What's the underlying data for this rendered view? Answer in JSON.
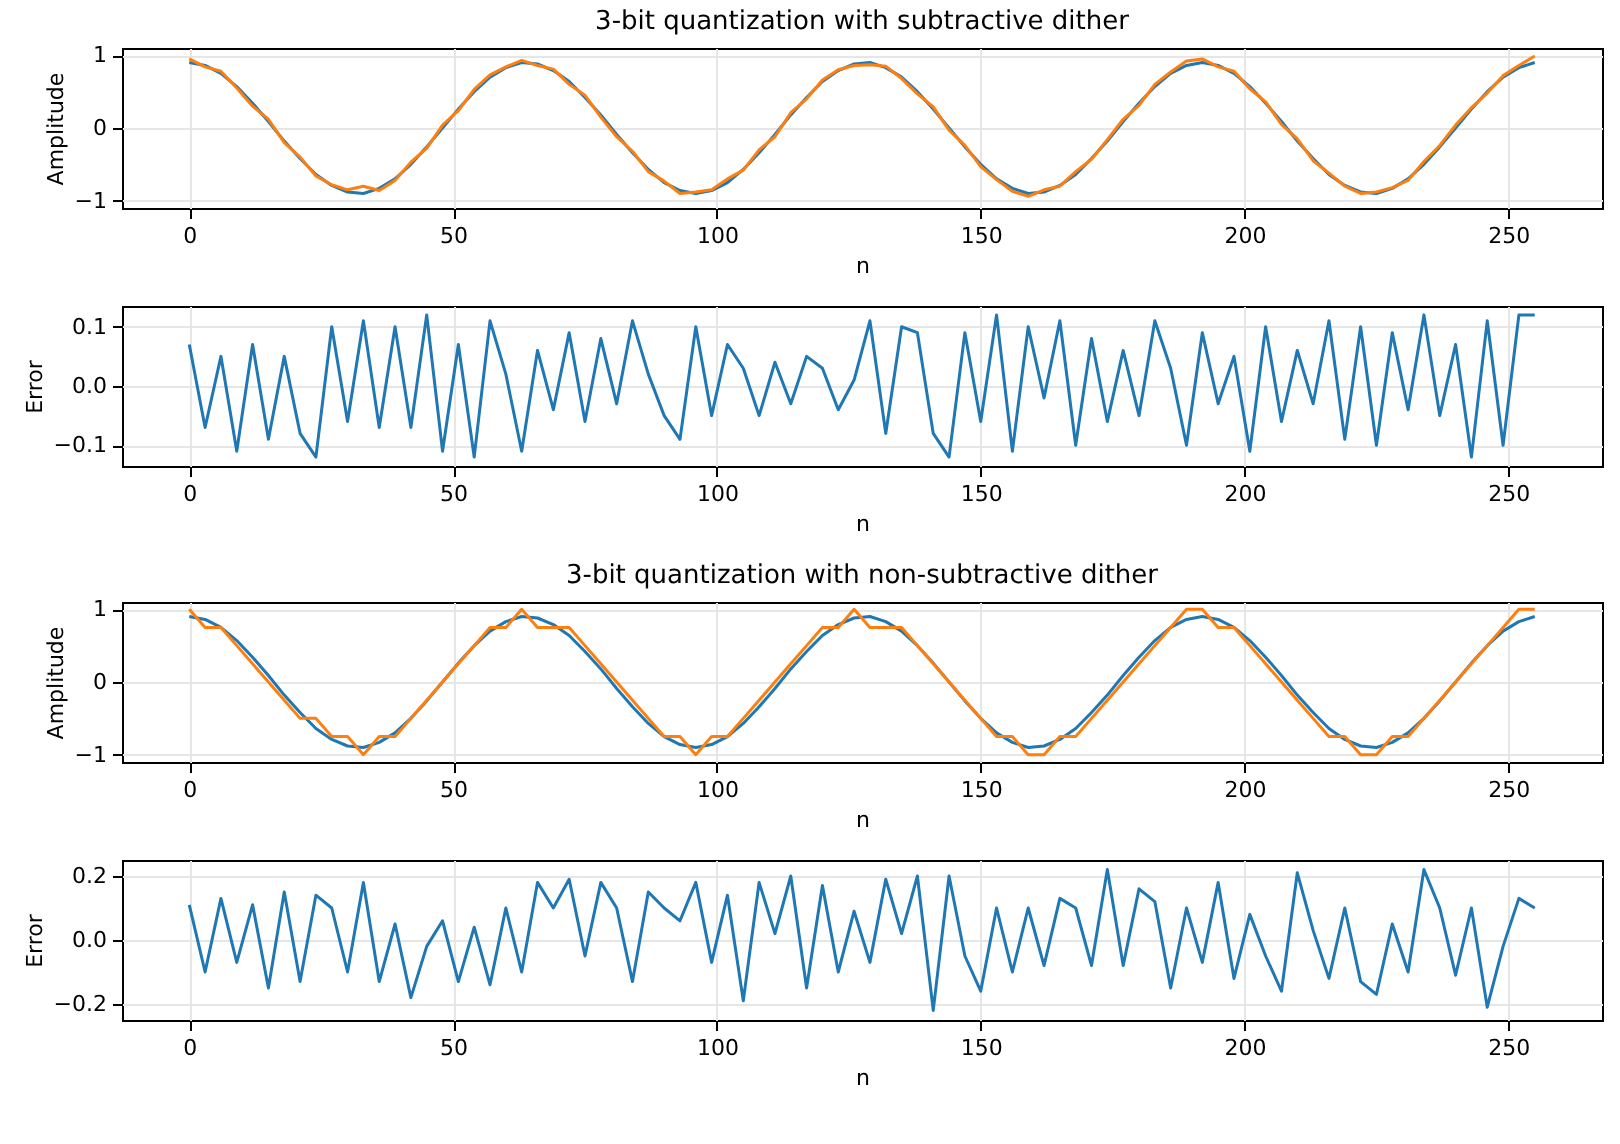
{
  "chart_data": [
    {
      "type": "line",
      "title": "3-bit quantization with subtractive dither",
      "xlabel": "n",
      "ylabel": "Amplitude",
      "xlim": [
        -12.75,
        267.75
      ],
      "xticks": [
        0,
        50,
        100,
        150,
        200,
        250
      ],
      "ylim": [
        -1.1,
        1.1
      ],
      "yticks": [
        -1,
        0,
        1
      ],
      "grid": true,
      "x": [
        0,
        3,
        6,
        9,
        12,
        15,
        18,
        21,
        24,
        27,
        30,
        33,
        36,
        39,
        42,
        45,
        48,
        51,
        54,
        57,
        60,
        63,
        66,
        69,
        72,
        75,
        78,
        81,
        84,
        87,
        90,
        93,
        96,
        99,
        102,
        105,
        108,
        111,
        114,
        117,
        120,
        123,
        126,
        129,
        132,
        135,
        138,
        141,
        144,
        147,
        150,
        153,
        156,
        159,
        162,
        165,
        168,
        171,
        174,
        177,
        180,
        183,
        186,
        189,
        192,
        195,
        198,
        201,
        204,
        207,
        210,
        213,
        216,
        219,
        222,
        225,
        228,
        231,
        234,
        237,
        240,
        243,
        246,
        249,
        252,
        255
      ],
      "series": [
        {
          "color": "#1f77b4",
          "values": [
            0.9,
            0.86,
            0.75,
            0.57,
            0.34,
            0.09,
            -0.18,
            -0.42,
            -0.64,
            -0.79,
            -0.88,
            -0.9,
            -0.83,
            -0.7,
            -0.5,
            -0.26,
            0,
            0.26,
            0.5,
            0.7,
            0.83,
            0.9,
            0.88,
            0.79,
            0.64,
            0.42,
            0.18,
            -0.09,
            -0.34,
            -0.57,
            -0.75,
            -0.86,
            -0.9,
            -0.86,
            -0.75,
            -0.57,
            -0.34,
            -0.09,
            0.18,
            0.42,
            0.64,
            0.79,
            0.88,
            0.9,
            0.83,
            0.7,
            0.5,
            0.26,
            0,
            -0.26,
            -0.5,
            -0.7,
            -0.83,
            -0.9,
            -0.88,
            -0.79,
            -0.64,
            -0.42,
            -0.18,
            0.09,
            0.34,
            0.57,
            0.75,
            0.86,
            0.9,
            0.86,
            0.75,
            0.57,
            0.34,
            0.09,
            -0.18,
            -0.42,
            -0.64,
            -0.79,
            -0.88,
            -0.9,
            -0.83,
            -0.7,
            -0.5,
            -0.26,
            0,
            0.26,
            0.5,
            0.7,
            0.83,
            0.9
          ]
        },
        {
          "color": "#ff7f0e",
          "values": [
            0.95,
            0.84,
            0.78,
            0.55,
            0.3,
            0.12,
            -0.2,
            -0.4,
            -0.66,
            -0.78,
            -0.85,
            -0.8,
            -0.86,
            -0.72,
            -0.47,
            -0.28,
            0.04,
            0.24,
            0.53,
            0.73,
            0.84,
            0.93,
            0.86,
            0.81,
            0.6,
            0.45,
            0.15,
            -0.12,
            -0.32,
            -0.6,
            -0.73,
            -0.9,
            -0.88,
            -0.85,
            -0.7,
            -0.58,
            -0.3,
            -0.12,
            0.21,
            0.4,
            0.66,
            0.8,
            0.86,
            0.87,
            0.85,
            0.68,
            0.47,
            0.29,
            -0.03,
            -0.24,
            -0.53,
            -0.71,
            -0.87,
            -0.94,
            -0.85,
            -0.8,
            -0.6,
            -0.43,
            -0.16,
            0.12,
            0.31,
            0.6,
            0.77,
            0.92,
            0.95,
            0.84,
            0.78,
            0.54,
            0.36,
            0.05,
            -0.15,
            -0.45,
            -0.62,
            -0.8,
            -0.9,
            -0.88,
            -0.82,
            -0.72,
            -0.46,
            -0.24,
            0.04,
            0.28,
            0.48,
            0.72,
            0.86,
            0.99
          ]
        }
      ]
    },
    {
      "type": "line",
      "xlabel": "n",
      "ylabel": "Error",
      "xlim": [
        -12.75,
        267.75
      ],
      "xticks": [
        0,
        50,
        100,
        150,
        200,
        250
      ],
      "ylim": [
        -0.135,
        0.135
      ],
      "yticks": [
        -0.1,
        {
          "value": 0,
          "label": "0.0"
        },
        0.1
      ],
      "grid": true,
      "x": [
        0,
        3,
        6,
        9,
        12,
        15,
        18,
        21,
        24,
        27,
        30,
        33,
        36,
        39,
        42,
        45,
        48,
        51,
        54,
        57,
        60,
        63,
        66,
        69,
        72,
        75,
        78,
        81,
        84,
        87,
        90,
        93,
        96,
        99,
        102,
        105,
        108,
        111,
        114,
        117,
        120,
        123,
        126,
        129,
        132,
        135,
        138,
        141,
        144,
        147,
        150,
        153,
        156,
        159,
        162,
        165,
        168,
        171,
        174,
        177,
        180,
        183,
        186,
        189,
        192,
        195,
        198,
        201,
        204,
        207,
        210,
        213,
        216,
        219,
        222,
        225,
        228,
        231,
        234,
        237,
        240,
        243,
        246,
        249,
        252,
        255
      ],
      "series": [
        {
          "color": "#1f77b4",
          "values": [
            0.07,
            -0.07,
            0.05,
            -0.11,
            0.07,
            -0.09,
            0.05,
            -0.08,
            -0.12,
            0.1,
            -0.06,
            0.11,
            -0.07,
            0.1,
            -0.07,
            0.12,
            -0.11,
            0.07,
            -0.12,
            0.11,
            0.02,
            -0.11,
            0.06,
            -0.04,
            0.09,
            -0.06,
            0.08,
            -0.03,
            0.11,
            0.02,
            -0.05,
            -0.09,
            0.1,
            -0.05,
            0.07,
            0.03,
            -0.05,
            0.04,
            -0.03,
            0.05,
            0.03,
            -0.04,
            0.01,
            0.11,
            -0.08,
            0.1,
            0.09,
            -0.08,
            -0.12,
            0.09,
            -0.06,
            0.12,
            -0.11,
            0.1,
            -0.02,
            0.11,
            -0.1,
            0.08,
            -0.06,
            0.06,
            -0.05,
            0.11,
            0.03,
            -0.1,
            0.09,
            -0.03,
            0.05,
            -0.11,
            0.1,
            -0.06,
            0.06,
            -0.03,
            0.11,
            -0.09,
            0.1,
            -0.1,
            0.09,
            -0.04,
            0.12,
            -0.05,
            0.07,
            -0.12,
            0.11,
            -0.1,
            0.12,
            0.12
          ]
        }
      ]
    },
    {
      "type": "line",
      "title": "3-bit quantization with non-subtractive dither",
      "xlabel": "n",
      "ylabel": "Amplitude",
      "xlim": [
        -12.75,
        267.75
      ],
      "xticks": [
        0,
        50,
        100,
        150,
        200,
        250
      ],
      "ylim": [
        -1.1,
        1.1
      ],
      "yticks": [
        -1,
        0,
        1
      ],
      "grid": true,
      "x": [
        0,
        3,
        6,
        9,
        12,
        15,
        18,
        21,
        24,
        27,
        30,
        33,
        36,
        39,
        42,
        45,
        48,
        51,
        54,
        57,
        60,
        63,
        66,
        69,
        72,
        75,
        78,
        81,
        84,
        87,
        90,
        93,
        96,
        99,
        102,
        105,
        108,
        111,
        114,
        117,
        120,
        123,
        126,
        129,
        132,
        135,
        138,
        141,
        144,
        147,
        150,
        153,
        156,
        159,
        162,
        165,
        168,
        171,
        174,
        177,
        180,
        183,
        186,
        189,
        192,
        195,
        198,
        201,
        204,
        207,
        210,
        213,
        216,
        219,
        222,
        225,
        228,
        231,
        234,
        237,
        240,
        243,
        246,
        249,
        252,
        255
      ],
      "series": [
        {
          "color": "#1f77b4",
          "values": [
            0.9,
            0.86,
            0.75,
            0.57,
            0.34,
            0.09,
            -0.18,
            -0.42,
            -0.64,
            -0.79,
            -0.88,
            -0.9,
            -0.83,
            -0.7,
            -0.5,
            -0.26,
            0,
            0.26,
            0.5,
            0.7,
            0.83,
            0.9,
            0.88,
            0.79,
            0.64,
            0.42,
            0.18,
            -0.09,
            -0.34,
            -0.57,
            -0.75,
            -0.86,
            -0.9,
            -0.86,
            -0.75,
            -0.57,
            -0.34,
            -0.09,
            0.18,
            0.42,
            0.64,
            0.79,
            0.88,
            0.9,
            0.83,
            0.7,
            0.5,
            0.26,
            0,
            -0.26,
            -0.5,
            -0.7,
            -0.83,
            -0.9,
            -0.88,
            -0.79,
            -0.64,
            -0.42,
            -0.18,
            0.09,
            0.34,
            0.57,
            0.75,
            0.86,
            0.9,
            0.86,
            0.75,
            0.57,
            0.34,
            0.09,
            -0.18,
            -0.42,
            -0.64,
            -0.79,
            -0.88,
            -0.9,
            -0.83,
            -0.7,
            -0.5,
            -0.26,
            0,
            0.26,
            0.5,
            0.7,
            0.83,
            0.9
          ]
        },
        {
          "color": "#ff7f0e",
          "values": [
            1,
            0.75,
            0.75,
            0.5,
            0.25,
            0,
            -0.25,
            -0.5,
            -0.5,
            -0.75,
            -0.75,
            -1,
            -0.75,
            -0.75,
            -0.5,
            -0.25,
            0,
            0.25,
            0.5,
            0.75,
            0.75,
            1,
            0.75,
            0.75,
            0.75,
            0.5,
            0.25,
            0,
            -0.25,
            -0.5,
            -0.75,
            -0.75,
            -1,
            -0.75,
            -0.75,
            -0.5,
            -0.25,
            0,
            0.25,
            0.5,
            0.75,
            0.75,
            1,
            0.75,
            0.75,
            0.75,
            0.5,
            0.25,
            0,
            -0.25,
            -0.5,
            -0.75,
            -0.75,
            -1,
            -1,
            -0.75,
            -0.75,
            -0.5,
            -0.25,
            0,
            0.25,
            0.5,
            0.75,
            1,
            1,
            0.75,
            0.75,
            0.5,
            0.25,
            0,
            -0.25,
            -0.5,
            -0.75,
            -0.75,
            -1,
            -1,
            -0.75,
            -0.75,
            -0.5,
            -0.25,
            0,
            0.25,
            0.5,
            0.75,
            1,
            1
          ]
        }
      ]
    },
    {
      "type": "line",
      "xlabel": "n",
      "ylabel": "Error",
      "xlim": [
        -12.75,
        267.75
      ],
      "xticks": [
        0,
        50,
        100,
        150,
        200,
        250
      ],
      "ylim": [
        -0.25,
        0.25
      ],
      "yticks": [
        -0.2,
        {
          "value": 0,
          "label": "0.0"
        },
        0.2
      ],
      "grid": true,
      "x": [
        0,
        3,
        6,
        9,
        12,
        15,
        18,
        21,
        24,
        27,
        30,
        33,
        36,
        39,
        42,
        45,
        48,
        51,
        54,
        57,
        60,
        63,
        66,
        69,
        72,
        75,
        78,
        81,
        84,
        87,
        90,
        93,
        96,
        99,
        102,
        105,
        108,
        111,
        114,
        117,
        120,
        123,
        126,
        129,
        132,
        135,
        138,
        141,
        144,
        147,
        150,
        153,
        156,
        159,
        162,
        165,
        168,
        171,
        174,
        177,
        180,
        183,
        186,
        189,
        192,
        195,
        198,
        201,
        204,
        207,
        210,
        213,
        216,
        219,
        222,
        225,
        228,
        231,
        234,
        237,
        240,
        243,
        246,
        249,
        252,
        255
      ],
      "series": [
        {
          "color": "#1f77b4",
          "values": [
            0.11,
            -0.1,
            0.13,
            -0.07,
            0.11,
            -0.15,
            0.15,
            -0.13,
            0.14,
            0.1,
            -0.1,
            0.18,
            -0.13,
            0.05,
            -0.18,
            -0.02,
            0.06,
            -0.13,
            0.04,
            -0.14,
            0.1,
            -0.1,
            0.18,
            0.1,
            0.19,
            -0.05,
            0.18,
            0.1,
            -0.13,
            0.15,
            0.1,
            0.06,
            0.18,
            -0.07,
            0.14,
            -0.19,
            0.18,
            0.02,
            0.2,
            -0.15,
            0.17,
            -0.1,
            0.09,
            -0.07,
            0.19,
            0.02,
            0.2,
            -0.22,
            0.2,
            -0.05,
            -0.16,
            0.1,
            -0.1,
            0.1,
            -0.08,
            0.13,
            0.1,
            -0.08,
            0.22,
            -0.08,
            0.16,
            0.12,
            -0.15,
            0.1,
            -0.07,
            0.18,
            -0.12,
            0.08,
            -0.05,
            -0.16,
            0.21,
            0.03,
            -0.12,
            0.1,
            -0.13,
            -0.17,
            0.05,
            -0.1,
            0.22,
            0.1,
            -0.11,
            0.1,
            -0.21,
            -0.02,
            0.13,
            0.1
          ]
        }
      ]
    }
  ]
}
